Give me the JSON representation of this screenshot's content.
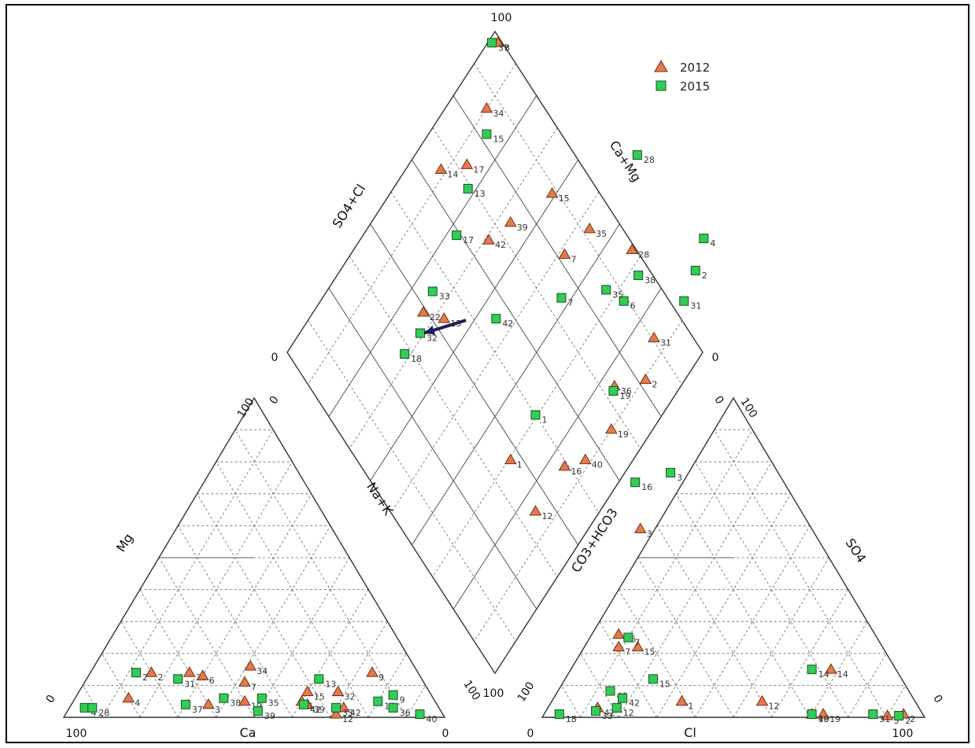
{
  "chart_data": {
    "type": "scatter",
    "subtype": "piper-diagram",
    "axis_labels": {
      "diamond_upper_left": "SO4+Cl",
      "diamond_upper_right": "Ca+Mg",
      "diamond_lower_left": "Na+K",
      "diamond_lower_right": "CO3+HCO3",
      "cation_left": "Mg",
      "cation_bottom": "Ca",
      "anion_right": "SO4",
      "anion_bottom": "Cl"
    },
    "tick_labels": {
      "diamond_top": "100",
      "diamond_left": "0",
      "diamond_right": "0",
      "diamond_bottom": "100",
      "cation_top_left": "100",
      "cation_top_right": "0",
      "cation_left_bottom": "0",
      "cation_bottom_left": "100",
      "cation_bottom_right": "0",
      "cation_right_bottom": "100",
      "anion_top_left": "0",
      "anion_top_right": "100",
      "anion_left_bottom": "100",
      "anion_bottom_left": "0",
      "anion_bottom_right": "100",
      "anion_right_bottom": "0"
    },
    "legend": {
      "placement": "top-right",
      "entries": [
        {
          "name": "2012",
          "marker": "triangle",
          "color": "#e07a4f",
          "stroke": "#7a2e12"
        },
        {
          "name": "2015",
          "marker": "square",
          "color": "#33cc55",
          "stroke": "#115522"
        }
      ]
    },
    "series": [
      {
        "name": "2012",
        "diamond_points": [
          {
            "label": "8",
            "u": 0.975,
            "v": 0.99
          },
          {
            "label": "34",
            "u": 0.9,
            "v": 0.86
          },
          {
            "label": "14",
            "u": 0.915,
            "v": 0.655
          },
          {
            "label": "17",
            "u": 0.86,
            "v": 0.725
          },
          {
            "label": "15",
            "u": 0.61,
            "v": 0.885
          },
          {
            "label": "35",
            "u": 0.465,
            "v": 0.92
          },
          {
            "label": "7",
            "u": 0.485,
            "v": 0.82
          },
          {
            "label": "39",
            "u": 0.665,
            "v": 0.74
          },
          {
            "label": "42",
            "u": 0.69,
            "v": 0.66
          },
          {
            "label": "22",
            "u": 0.735,
            "v": 0.39
          },
          {
            "label": "13",
            "u": 0.675,
            "v": 0.43
          },
          {
            "label": "28",
            "u": 0.33,
            "v": 0.99
          },
          {
            "label": "31",
            "u": 0.14,
            "v": 0.905
          },
          {
            "label": "36",
            "u": 0.16,
            "v": 0.735
          },
          {
            "label": "19",
            "u": 0.1,
            "v": 0.66
          },
          {
            "label": "40",
            "u": 0.115,
            "v": 0.55
          },
          {
            "label": "16",
            "u": 0.155,
            "v": 0.49
          },
          {
            "label": "1",
            "u": 0.295,
            "v": 0.37
          },
          {
            "label": "12",
            "u": 0.155,
            "v": 0.35
          },
          {
            "label": "2",
            "u": 0.095,
            "v": 0.82
          },
          {
            "label": "3",
            "u": -0.125,
            "v": 0.575
          }
        ],
        "cation_points": [
          {
            "label": "2",
            "ca": 0.7,
            "mg": 0.14
          },
          {
            "label": "31",
            "ca": 0.6,
            "mg": 0.14
          },
          {
            "label": "6",
            "ca": 0.57,
            "mg": 0.13
          },
          {
            "label": "34",
            "ca": 0.43,
            "mg": 0.16
          },
          {
            "label": "7",
            "ca": 0.47,
            "mg": 0.11
          },
          {
            "label": "4",
            "ca": 0.8,
            "mg": 0.06
          },
          {
            "label": "19",
            "ca": 0.5,
            "mg": 0.05
          },
          {
            "label": "15",
            "ca": 0.32,
            "mg": 0.08
          },
          {
            "label": "32",
            "ca": 0.24,
            "mg": 0.08
          },
          {
            "label": "9",
            "ca": 0.12,
            "mg": 0.14
          },
          {
            "label": "39",
            "ca": 0.34,
            "mg": 0.04
          },
          {
            "label": "1",
            "ca": 0.35,
            "mg": 0.05
          },
          {
            "label": "12",
            "ca": 0.28,
            "mg": 0.01
          },
          {
            "label": "42",
            "ca": 0.25,
            "mg": 0.03
          },
          {
            "label": "3",
            "ca": 0.6,
            "mg": 0.04
          }
        ],
        "anion_points": [
          {
            "label": "14",
            "cl": 0.15,
            "so4": 0.68
          },
          {
            "label": "15",
            "cl": 0.22,
            "so4": 0.14
          },
          {
            "label": "7",
            "cl": 0.22,
            "so4": 0.09
          },
          {
            "label": "36",
            "cl": 0.26,
            "so4": 0.07
          },
          {
            "label": "2",
            "cl": 0.01,
            "so4": 0.94
          },
          {
            "label": "3",
            "cl": 0.005,
            "so4": 0.9
          },
          {
            "label": "12",
            "cl": 0.05,
            "so4": 0.55
          },
          {
            "label": "1",
            "cl": 0.05,
            "so4": 0.34
          },
          {
            "label": "42",
            "cl": 0.03,
            "so4": 0.13
          },
          {
            "label": "19",
            "cl": 0.01,
            "so4": 0.73
          },
          {
            "label": "40",
            "cl": 0.01,
            "so4": 0.7
          }
        ]
      },
      {
        "name": "2015",
        "diamond_points": [
          {
            "label": "37",
            "u": 0.99,
            "v": 0.975
          },
          {
            "label": "15",
            "u": 0.86,
            "v": 0.82
          },
          {
            "label": "13",
            "u": 0.82,
            "v": 0.69
          },
          {
            "label": "17",
            "u": 0.775,
            "v": 0.59
          },
          {
            "label": "33",
            "u": 0.745,
            "v": 0.445
          },
          {
            "label": "32",
            "u": 0.71,
            "v": 0.35
          },
          {
            "label": "18",
            "u": 0.715,
            "v": 0.28
          },
          {
            "label": "42",
            "u": 0.55,
            "v": 0.555
          },
          {
            "label": "7",
            "u": 0.425,
            "v": 0.745
          },
          {
            "label": "1",
            "u": 0.305,
            "v": 0.5
          },
          {
            "label": "28",
            "u": 0.465,
            "v": 1.15
          },
          {
            "label": "38",
            "u": 0.275,
            "v": 0.965
          },
          {
            "label": "6",
            "u": 0.27,
            "v": 0.89
          },
          {
            "label": "35",
            "u": 0.33,
            "v": 0.865
          },
          {
            "label": "19",
            "u": 0.155,
            "v": 0.725
          },
          {
            "label": "16",
            "u": -0.04,
            "v": 0.635
          },
          {
            "label": "4",
            "u": 0.175,
            "v": 1.18
          },
          {
            "label": "2",
            "u": 0.145,
            "v": 1.11
          },
          {
            "label": "31",
            "u": 0.125,
            "v": 1.035
          },
          {
            "label": "3",
            "u": -0.11,
            "v": 0.735
          },
          {
            "label": "40",
            "u": -0.305,
            "v": 0.25
          }
        ],
        "cation_points": [
          {
            "label": "4",
            "ca": 0.93,
            "mg": 0.03
          },
          {
            "label": "28",
            "ca": 0.91,
            "mg": 0.03
          },
          {
            "label": "2",
            "ca": 0.74,
            "mg": 0.14
          },
          {
            "label": "31",
            "ca": 0.64,
            "mg": 0.12
          },
          {
            "label": "37",
            "ca": 0.66,
            "mg": 0.04
          },
          {
            "label": "38",
            "ca": 0.55,
            "mg": 0.06
          },
          {
            "label": "35",
            "ca": 0.45,
            "mg": 0.06
          },
          {
            "label": "39",
            "ca": 0.48,
            "mg": 0.02
          },
          {
            "label": "13",
            "ca": 0.27,
            "mg": 0.12
          },
          {
            "label": "33",
            "ca": 0.27,
            "mg": 0.03
          },
          {
            "label": "18",
            "ca": 0.15,
            "mg": 0.05
          },
          {
            "label": "9",
            "ca": 0.1,
            "mg": 0.07
          },
          {
            "label": "36",
            "ca": 0.12,
            "mg": 0.03
          },
          {
            "label": "40",
            "ca": 0.06,
            "mg": 0.01
          },
          {
            "label": "42",
            "ca": 0.35,
            "mg": 0.04
          }
        ],
        "anion_points": [
          {
            "label": "14",
            "cl": 0.15,
            "so4": 0.63
          },
          {
            "label": "15",
            "cl": 0.12,
            "so4": 0.23
          },
          {
            "label": "12",
            "cl": 0.03,
            "so4": 0.18
          },
          {
            "label": "7",
            "cl": 0.25,
            "so4": 0.1
          },
          {
            "label": "2",
            "cl": 0.005,
            "so4": 0.93
          },
          {
            "label": "31",
            "cl": 0.01,
            "so4": 0.86
          },
          {
            "label": "42",
            "cl": 0.06,
            "so4": 0.18
          },
          {
            "label": "33",
            "cl": 0.02,
            "so4": 0.13
          },
          {
            "label": "18",
            "cl": 0.01,
            "so4": 0.04
          },
          {
            "label": "19",
            "cl": 0.01,
            "so4": 0.7
          }
        ]
      }
    ],
    "annotation": {
      "type": "arrow",
      "color": "#1a1f5a",
      "from": {
        "u": 0.62,
        "v": 0.48
      },
      "to": {
        "u": 0.7,
        "v": 0.36
      }
    }
  }
}
